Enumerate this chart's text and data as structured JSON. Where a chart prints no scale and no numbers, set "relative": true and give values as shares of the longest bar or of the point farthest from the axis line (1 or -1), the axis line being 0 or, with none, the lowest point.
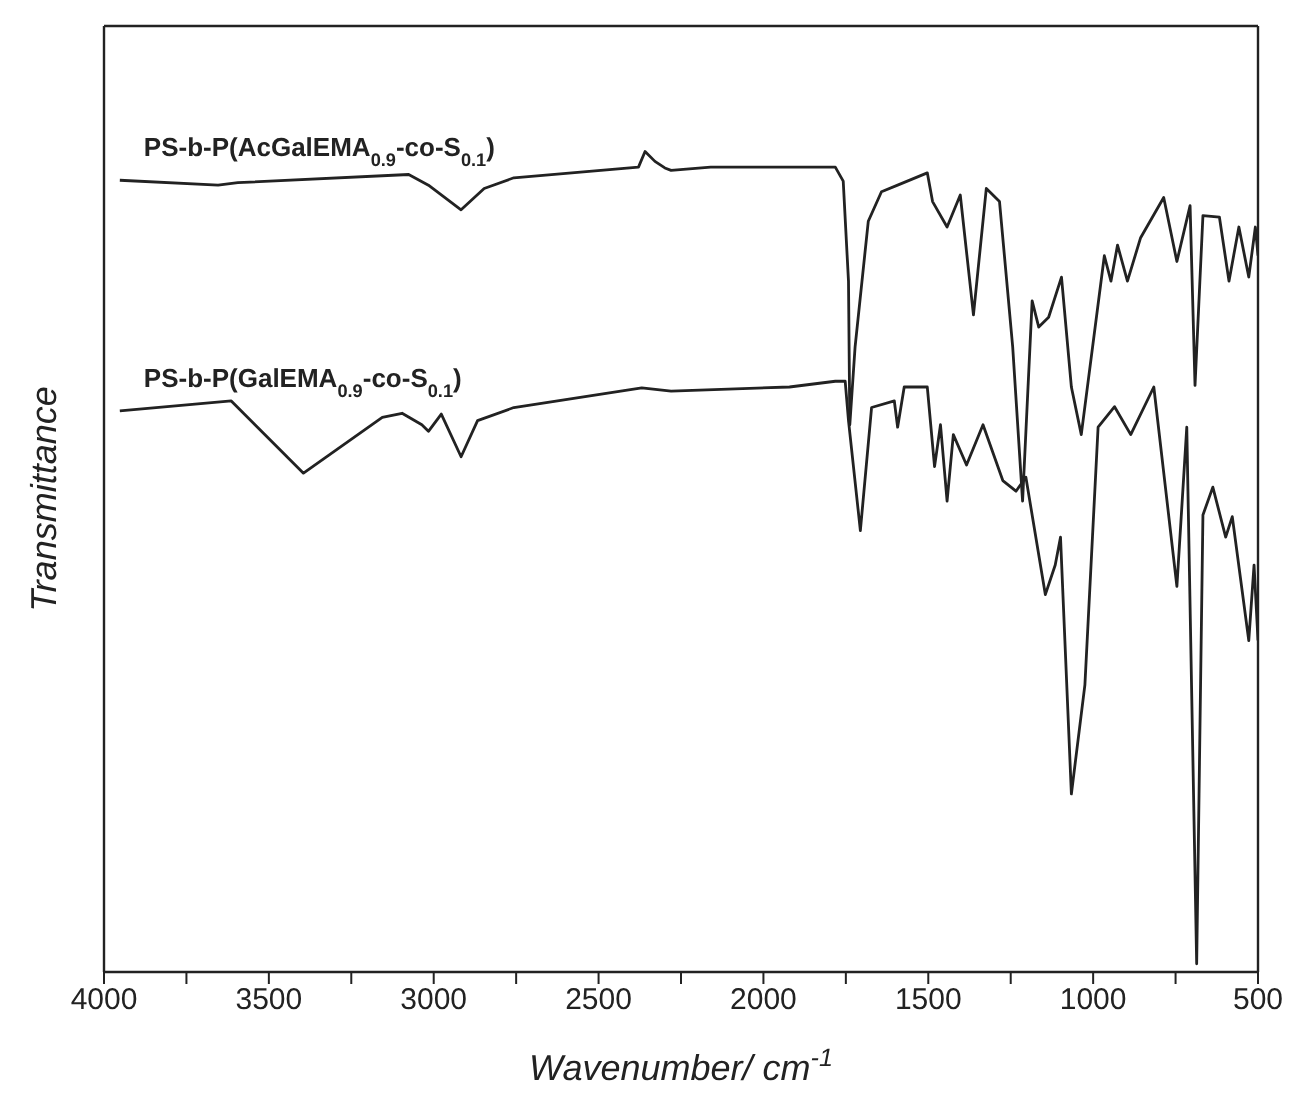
{
  "chart_data": {
    "type": "line",
    "relative": true,
    "xlabel": "Wavenumber/ cm$^{-1}$",
    "ylabel": "Transmittance",
    "xlim": [
      4000,
      500
    ],
    "xticks": [
      4000,
      {
        "value": 3750,
        "label": null
      },
      3500,
      {
        "value": 3250,
        "label": null
      },
      3000,
      {
        "value": 2750,
        "label": null
      },
      2500,
      {
        "value": 2250,
        "label": null
      },
      2000,
      {
        "value": 1750,
        "label": null
      },
      1500,
      {
        "value": 1250,
        "label": null
      },
      1000,
      {
        "value": 750,
        "label": null
      },
      500
    ],
    "marker": "none",
    "line_style": "solid",
    "tick_labels": "x",
    "series": [
      {
        "name": "PS-b-P(AcGalEMA$_{0.9}$-co-S$_{0.1}$)",
        "color": "#222222",
        "x": [
          3952,
          3654,
          3594,
          3076,
          3016,
          2917,
          2847,
          2757,
          2379,
          2359,
          2329,
          2299,
          2280,
          2160,
          1782,
          1758,
          1742,
          1738,
          1722,
          1682,
          1642,
          1593,
          1503,
          1487,
          1443,
          1403,
          1363,
          1324,
          1284,
          1244,
          1214,
          1185,
          1165,
          1135,
          1096,
          1066,
          1036,
          966,
          946,
          926,
          896,
          856,
          786,
          746,
          706,
          691,
          667,
          617,
          588,
          558,
          528,
          508,
          500
        ],
        "values": [
          0.965,
          0.959,
          0.962,
          0.972,
          0.959,
          0.929,
          0.955,
          0.968,
          0.981,
          1.0,
          0.988,
          0.98,
          0.977,
          0.981,
          0.981,
          0.964,
          0.842,
          0.667,
          0.762,
          0.915,
          0.951,
          0.959,
          0.974,
          0.939,
          0.908,
          0.947,
          0.801,
          0.955,
          0.939,
          0.762,
          0.574,
          0.818,
          0.786,
          0.798,
          0.847,
          0.713,
          0.655,
          0.873,
          0.842,
          0.886,
          0.842,
          0.895,
          0.944,
          0.866,
          0.934,
          0.715,
          0.922,
          0.92,
          0.842,
          0.908,
          0.847,
          0.908,
          0.873
        ]
      },
      {
        "name": "PS-b-P(GalEMA$_{0.9}$-co-S$_{0.1}$)",
        "color": "#222222",
        "x": [
          3952,
          3614,
          3395,
          3156,
          3096,
          3036,
          3016,
          2977,
          2917,
          2867,
          2757,
          2369,
          2280,
          1921,
          1782,
          1752,
          1742,
          1706,
          1672,
          1603,
          1593,
          1573,
          1503,
          1481,
          1463,
          1443,
          1424,
          1384,
          1334,
          1274,
          1234,
          1204,
          1145,
          1115,
          1099,
          1066,
          1025,
          985,
          935,
          886,
          816,
          746,
          716,
          686,
          667,
          637,
          598,
          578,
          528,
          512,
          500
        ],
        "values": [
          0.684,
          0.696,
          0.608,
          0.676,
          0.681,
          0.667,
          0.659,
          0.68,
          0.628,
          0.672,
          0.688,
          0.712,
          0.708,
          0.713,
          0.72,
          0.72,
          0.672,
          0.538,
          0.688,
          0.696,
          0.664,
          0.713,
          0.713,
          0.616,
          0.667,
          0.574,
          0.655,
          0.618,
          0.667,
          0.599,
          0.586,
          0.603,
          0.46,
          0.496,
          0.53,
          0.217,
          0.35,
          0.664,
          0.689,
          0.655,
          0.713,
          0.47,
          0.664,
          0.01,
          0.557,
          0.591,
          0.53,
          0.555,
          0.404,
          0.496,
          0.404
        ]
      }
    ]
  }
}
